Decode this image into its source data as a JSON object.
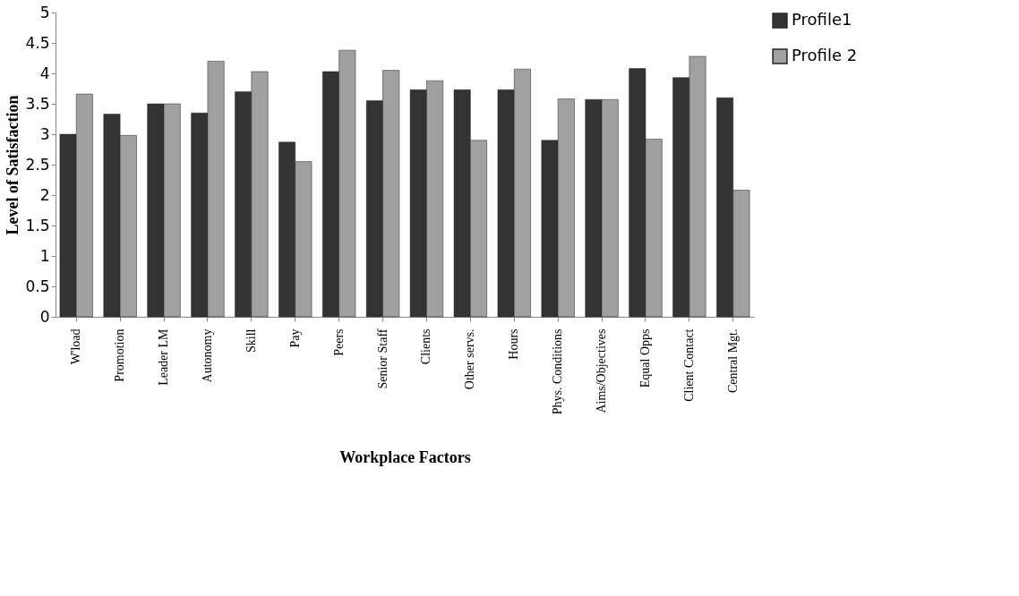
{
  "chart_data": {
    "type": "bar",
    "xlabel": "Workplace Factors",
    "ylabel": "Level of Satisfaction",
    "categories": [
      "W'load",
      "Promotion",
      "Leader LM",
      "Autonomy",
      "Skill",
      "Pay",
      "Peers",
      "Senior Staff",
      "Clients",
      "Other servs.",
      "Hours",
      "Phys. Conditions",
      "Aims/Objectives",
      "Equal Opps",
      "Client Contact",
      "Central Mgt."
    ],
    "series": [
      {
        "name": "Profile1",
        "color": "#333333",
        "values": [
          3.0,
          3.33,
          3.5,
          3.35,
          3.7,
          2.87,
          4.03,
          3.55,
          3.73,
          3.73,
          3.73,
          2.9,
          3.57,
          4.08,
          3.93,
          3.6
        ]
      },
      {
        "name": "Profile 2",
        "color": "#a0a0a0",
        "values": [
          3.66,
          2.98,
          3.5,
          4.2,
          4.03,
          2.55,
          4.38,
          4.05,
          3.88,
          2.9,
          4.07,
          3.58,
          3.57,
          2.92,
          4.28,
          2.08
        ]
      }
    ],
    "ylim": [
      0,
      5
    ],
    "yticks": [
      0,
      0.5,
      1,
      1.5,
      2,
      2.5,
      3,
      3.5,
      4,
      4.5,
      5
    ],
    "grid": false,
    "legend": "top right"
  }
}
